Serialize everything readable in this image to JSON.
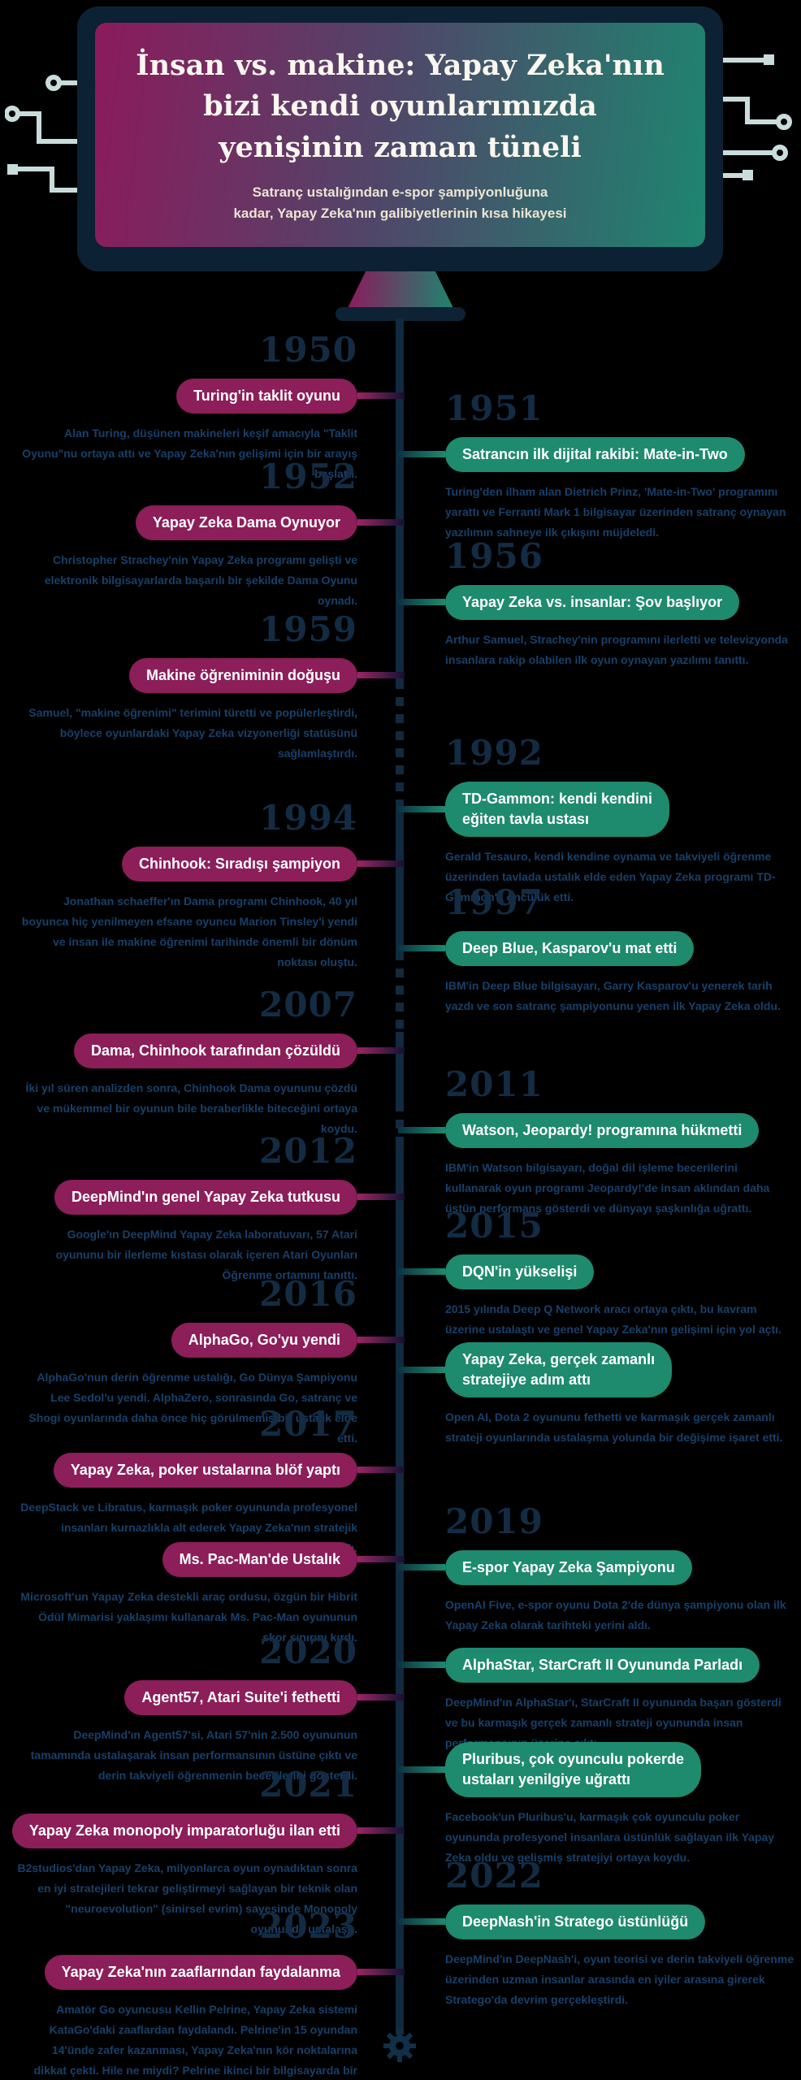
{
  "header": {
    "title": "İnsan vs. makine: Yapay Zeka'nın\nbizi kendi oyunlarımızda\nyenişinin zaman tüneli",
    "subtitle": "Satranç ustalığından e-spor şampiyonluğuna\nkadar, Yapay Zeka'nın galibiyetlerinin kısa hikayesi"
  },
  "theme": {
    "background": "#000000",
    "monitor_frame": "#0c2133",
    "screen_gradient_left": "#8c1a5c",
    "screen_gradient_right": "#1e8570",
    "left_pill": "#8c1e59",
    "right_pill": "#1e8a6e",
    "year_text": "#132c44",
    "body_text": "#17406a",
    "title_text": "#fbf7ee",
    "circuit_lines": "#c9dcdc"
  },
  "timeline": {
    "items": [
      {
        "id": "y1950",
        "side": "left",
        "year": "1950",
        "label": "Turing'in taklit oyunu",
        "body": "Alan Turing, düşünen makineleri keşif amacıyla \"Taklit Oyunu\"nu ortaya attı ve Yapay Zeka'nın gelişimi için bir arayış başlattı."
      },
      {
        "id": "y1951",
        "side": "right",
        "year": "1951",
        "label": "Satrancın ilk dijital rakibi: Mate-in-Two",
        "body": "Turing'den ilham alan Dietrich Prinz, 'Mate-in-Two' programını yarattı ve Ferranti Mark 1 bilgisayar üzerinden satranç oynayan yazılımın sahneye ilk çıkışını müjdeledi."
      },
      {
        "id": "y1952",
        "side": "left",
        "year": "1952",
        "label": "Yapay Zeka Dama Oynuyor",
        "body": "Christopher Strachey'nin Yapay Zeka programı gelişti ve elektronik bilgisayarlarda başarılı bir şekilde Dama Oyunu oynadı."
      },
      {
        "id": "y1956",
        "side": "right",
        "year": "1956",
        "label": "Yapay Zeka vs. insanlar: Şov başlıyor",
        "body": "Arthur Samuel, Strachey'nin programını ilerletti ve televizyonda insanlara rakip olabilen ilk oyun oynayan yazılımı tanıttı."
      },
      {
        "id": "y1959",
        "side": "left",
        "year": "1959",
        "label": "Makine öğreniminin doğuşu",
        "body": "Samuel, \"makine öğrenimi\" terimini türetti ve popülerleştirdi, böylece oyunlardaki Yapay Zeka vizyonerliği statüsünü sağlamlaştırdı."
      },
      {
        "id": "y1992",
        "side": "right",
        "year": "1992",
        "label": "TD-Gammon: kendi kendini\neğiten tavla ustası",
        "body": "Gerald Tesauro, kendi kendine oynama ve takviyeli öğrenme üzerinden tavlada ustalık elde eden Yapay Zeka programı TD-Gammon'a öncülük etti."
      },
      {
        "id": "y1994",
        "side": "left",
        "year": "1994",
        "label": "Chinhook: Sıradışı şampiyon",
        "body": "Jonathan schaeffer'ın Dama programı Chinhook, 40 yıl boyunca hiç yenilmeyen efsane oyuncu Marion Tinsley'i yendi ve insan ile makine öğrenimi tarihinde önemli bir dönüm noktası oluştu."
      },
      {
        "id": "y1997",
        "side": "right",
        "year": "1997",
        "label": "Deep Blue, Kasparov'u mat etti",
        "body": "IBM'in Deep Blue bilgisayarı, Garry Kasparov'u yenerek tarih yazdı ve son satranç şampiyonunu yenen ilk Yapay Zeka oldu."
      },
      {
        "id": "y2007",
        "side": "left",
        "year": "2007",
        "label": "Dama, Chinhook tarafından çözüldü",
        "body": "İki yıl süren analizden sonra, Chinhook Dama oyununu çözdü ve mükemmel bir oyunun bile beraberlikle biteceğini ortaya koydu."
      },
      {
        "id": "y2011",
        "side": "right",
        "year": "2011",
        "label": "Watson, Jeopardy! programına hükmetti",
        "body": "IBM'in Watson bilgisayarı, doğal dil işleme becerilerini kullanarak oyun programı Jeopardy!'de insan aklından daha üstün performans gösterdi ve dünyayı şaşkınlığa uğrattı."
      },
      {
        "id": "y2012",
        "side": "left",
        "year": "2012",
        "label": "DeepMind'ın genel Yapay Zeka tutkusu",
        "body": "Google'ın DeepMind Yapay Zeka laboratuvarı, 57 Atari oyununu bir ilerleme kıstası olarak içeren Atari Oyunları Öğrenme ortamını tanıttı."
      },
      {
        "id": "y2015",
        "side": "right",
        "year": "2015",
        "label": "DQN'in yükselişi",
        "body": "2015 yılında Deep Q Network aracı ortaya çıktı, bu kavram üzerine ustalaştı ve genel Yapay Zeka'nın gelişimi için yol açtı."
      },
      {
        "id": "y2016",
        "side": "left",
        "year": "2016",
        "label": "AlphaGo, Go'yu yendi",
        "body": "AlphaGo'nun derin öğrenme ustalığı, Go Dünya Şampiyonu Lee Sedol'u yendi. AlphaZero, sonrasında Go, satranç ve Shogi oyunlarında daha önce hiç görülmemiş bir ustalık elde etti."
      },
      {
        "id": "rtstrategy",
        "side": "right",
        "year": null,
        "label": "Yapay Zeka, gerçek zamanlı\nstratejiye adım attı",
        "body": "Open AI, Dota 2 oyununu fethetti ve karmaşık gerçek zamanlı strateji oyunlarında ustalaşma yolunda bir değişime işaret etti."
      },
      {
        "id": "y2017",
        "side": "left",
        "year": "2017",
        "label": "Yapay Zeka, poker ustalarına blöf yaptı",
        "body": "DeepStack ve Libratus, karmaşık poker oyununda profesyonel insanları kurnazlıkla alt ederek Yapay Zeka'nın stratejik becerisini kanıtladı."
      },
      {
        "id": "y2019",
        "side": "right",
        "year": "2019",
        "label": "E-spor Yapay Zeka Şampiyonu",
        "body": "OpenAI Five, e-spor oyunu Dota 2'de dünya şampiyonu olan ilk Yapay Zeka olarak tarihteki yerini aldı."
      },
      {
        "id": "mspacman",
        "side": "left",
        "year": null,
        "label": "Ms. Pac-Man'de Ustalık",
        "body": "Microsoft'un Yapay Zeka destekli araç ordusu, özgün bir Hibrit Ödül Mimarisi yaklaşımı kullanarak Ms. Pac-Man oyununun skor sınırını kırdı."
      },
      {
        "id": "y2020",
        "side": "left",
        "year": "2020",
        "label": "Agent57, Atari Suite'i fethetti",
        "body": "DeepMind'ın Agent57'si, Atari 57'nin 2.500 oyununun tamamında ustalaşarak insan performansının üstüne çıktı ve derin takviyeli öğrenmenin becerilerini gösterdi."
      },
      {
        "id": "alphastar",
        "side": "right",
        "year": null,
        "label": "AlphaStar, StarCraft II Oyununda Parladı",
        "body": "DeepMind'ın AlphaStar'ı, StarCraft II oyununda başarı gösterdi ve bu karmaşık gerçek zamanlı strateji oyununda insan performansının üzerine çıktı."
      },
      {
        "id": "pluribus",
        "side": "right",
        "year": null,
        "label": "Pluribus, çok oyunculu pokerde\nustaları yenilgiye uğrattı",
        "body": "Facebook'un Pluribus'u, karmaşık çok oyunculu poker oyununda profesyonel insanlara üstünlük sağlayan ilk Yapay Zeka oldu ve gelişmiş stratejiyi ortaya koydu."
      },
      {
        "id": "y2021",
        "side": "left",
        "year": "2021",
        "label": "Yapay Zeka monopoly imparatorluğu ilan etti",
        "body": "B2studios'dan Yapay Zeka, milyonlarca oyun oynadıktan sonra en iyi stratejileri tekrar geliştirmeyi sağlayan bir teknik olan \"neuroevolution\" (sinirsel evrim) sayesinde Monopoly oyununda ustalaştı."
      },
      {
        "id": "y2022",
        "side": "right",
        "year": "2022",
        "label": "DeepNash'in Stratego üstünlüğü",
        "body": "DeepMind'ın DeepNash'i, oyun teorisi ve derin takviyeli öğrenme üzerinden uzman insanlar arasında en iyiler arasına girerek Stratego'da devrim gerçekleştirdi."
      },
      {
        "id": "y2023",
        "side": "left",
        "year": "2023",
        "label": "Yapay Zeka'nın zaaflarından faydalanma",
        "body": "Amatör Go oyuncusu Kellin Pelrine, Yapay Zeka sistemi KataGo'daki zaaflardan faydalandı. Pelrine'in 15 oyundan 14'ünde zafer kazanması, Yapay Zeka'nın kör noktalarına dikkat çekti. Hile ne miydi? Pelrine ikinci bir bilgisayarda bir bottan yardımı alarak kazandı."
      }
    ]
  }
}
